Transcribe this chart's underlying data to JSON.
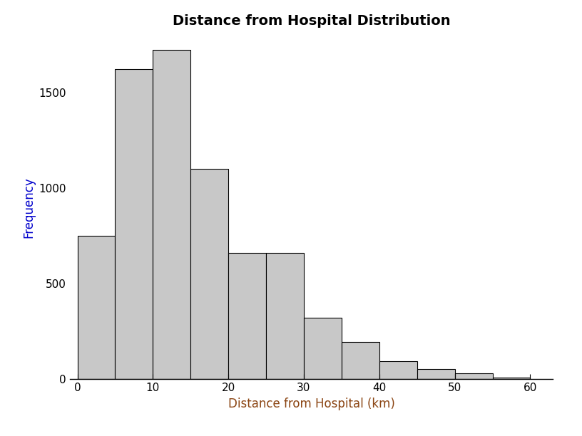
{
  "title": "Distance from Hospital Distribution",
  "xlabel": "Distance from Hospital (km)",
  "ylabel": "Frequency",
  "bar_heights": [
    750,
    1620,
    1720,
    1100,
    660,
    660,
    320,
    195,
    95,
    55,
    30,
    10
  ],
  "bin_edges": [
    0,
    5,
    10,
    15,
    20,
    25,
    30,
    35,
    40,
    45,
    50,
    55,
    60
  ],
  "bar_color": "#c8c8c8",
  "bar_edgecolor": "#000000",
  "bar_linewidth": 0.8,
  "ylim": [
    0,
    1800
  ],
  "xlim": [
    -1,
    63
  ],
  "yticks": [
    0,
    500,
    1000,
    1500
  ],
  "xticks": [
    0,
    10,
    20,
    30,
    40,
    50,
    60
  ],
  "title_fontsize": 14,
  "label_fontsize": 12,
  "tick_fontsize": 11,
  "ylabel_color": "#0000cc",
  "xlabel_color": "#8b4513",
  "background_color": "#ffffff"
}
